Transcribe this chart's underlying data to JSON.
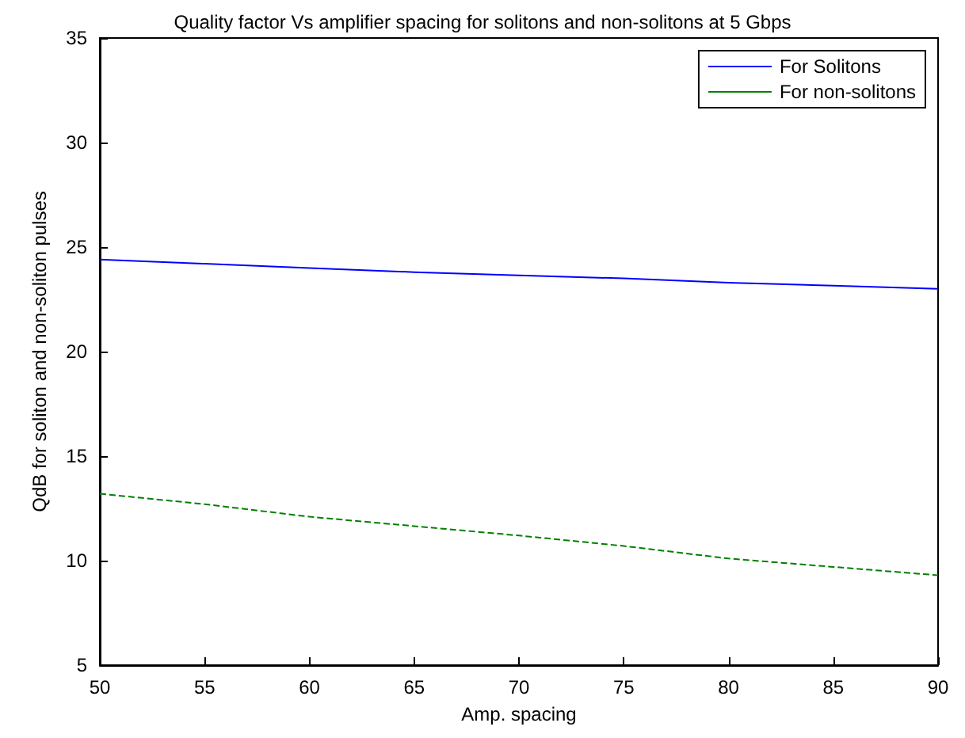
{
  "chart_data": {
    "type": "line",
    "title": "Quality factor Vs amplifier spacing for solitons and non-solitons at 5 Gbps",
    "xlabel": "Amp. spacing",
    "ylabel": "QdB for soliton and non-soliton pulses",
    "x": [
      50,
      55,
      60,
      65,
      70,
      75,
      80,
      85,
      90
    ],
    "series": [
      {
        "name": "For Solitons",
        "color": "#0000ff",
        "line_style": "solid",
        "values": [
          24.4,
          24.2,
          24.0,
          23.8,
          23.65,
          23.5,
          23.3,
          23.15,
          23.0
        ]
      },
      {
        "name": "For non-solitons",
        "color": "#008000",
        "line_style": "dashed",
        "values": [
          13.2,
          12.7,
          12.1,
          11.65,
          11.2,
          10.7,
          10.1,
          9.7,
          9.3
        ]
      }
    ],
    "xlim": [
      50,
      90
    ],
    "xticks": [
      50,
      55,
      60,
      65,
      70,
      75,
      80,
      85,
      90
    ],
    "ylim": [
      5,
      35
    ],
    "yticks": [
      5,
      10,
      15,
      20,
      25,
      30,
      35
    ],
    "legend": "top right",
    "marker": "none",
    "grid": false
  }
}
